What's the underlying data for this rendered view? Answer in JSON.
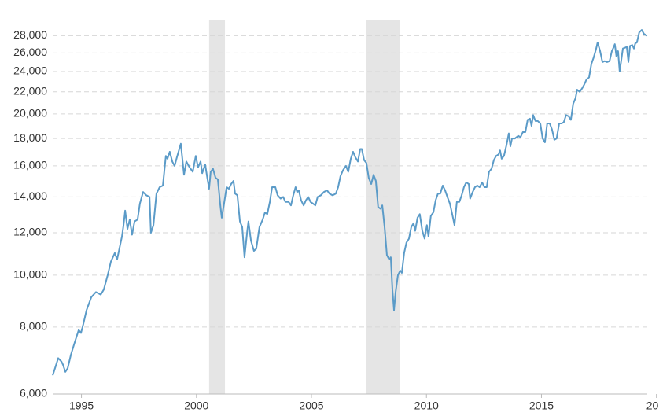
{
  "chart_data": {
    "type": "line",
    "color": "#5b9bc8",
    "shade_color": "#e5e5e5",
    "log_scale_y": true,
    "grid": true,
    "xlim": [
      1993.75,
      2019.6
    ],
    "ylim": [
      6000,
      30000
    ],
    "xticks": [
      1995,
      2000,
      2005,
      2010,
      2015,
      {
        "value": 2020,
        "label": "20"
      }
    ],
    "yticks": [
      {
        "value": 6000,
        "label": "6,000"
      },
      {
        "value": 8000,
        "label": "8,000"
      },
      {
        "value": 10000,
        "label": "10,000"
      },
      {
        "value": 12000,
        "label": "12,000"
      },
      {
        "value": 14000,
        "label": "14,000"
      },
      {
        "value": 16000,
        "label": "16,000"
      },
      {
        "value": 18000,
        "label": "18,000"
      },
      {
        "value": 20000,
        "label": "20,000"
      },
      {
        "value": 22000,
        "label": "22,000"
      },
      {
        "value": 24000,
        "label": "24,000"
      },
      {
        "value": 26000,
        "label": "26,000"
      },
      {
        "value": 28000,
        "label": "28,000"
      }
    ],
    "shaded_ranges": [
      [
        2000.55,
        2001.24
      ],
      [
        2007.39,
        2008.86
      ]
    ],
    "x": [
      1993.75,
      1993.85,
      1993.99,
      1994.13,
      1994.2,
      1994.3,
      1994.4,
      1994.54,
      1994.71,
      1994.88,
      1994.98,
      1995.08,
      1995.22,
      1995.43,
      1995.63,
      1995.84,
      1995.97,
      1996.14,
      1996.28,
      1996.45,
      1996.55,
      1996.76,
      1996.83,
      1996.9,
      1997.0,
      1997.1,
      1997.2,
      1997.31,
      1997.44,
      1997.54,
      1997.68,
      1997.82,
      1997.96,
      1998.02,
      1998.13,
      1998.26,
      1998.4,
      1998.54,
      1998.67,
      1998.74,
      1998.84,
      1998.95,
      1999.05,
      1999.15,
      1999.32,
      1999.46,
      1999.56,
      1999.7,
      1999.84,
      1999.97,
      2000.07,
      2000.18,
      2000.25,
      2000.38,
      2000.45,
      2000.55,
      2000.62,
      2000.72,
      2000.83,
      2000.93,
      2001.03,
      2001.1,
      2001.2,
      2001.31,
      2001.41,
      2001.51,
      2001.61,
      2001.68,
      2001.78,
      2001.89,
      2001.99,
      2002.09,
      2002.2,
      2002.26,
      2002.37,
      2002.5,
      2002.6,
      2002.74,
      2002.88,
      2002.98,
      2003.08,
      2003.19,
      2003.29,
      2003.43,
      2003.53,
      2003.66,
      2003.77,
      2003.87,
      2004.01,
      2004.11,
      2004.21,
      2004.31,
      2004.38,
      2004.45,
      2004.55,
      2004.66,
      2004.76,
      2004.86,
      2004.96,
      2005.07,
      2005.17,
      2005.27,
      2005.41,
      2005.54,
      2005.68,
      2005.78,
      2005.92,
      2006.06,
      2006.16,
      2006.26,
      2006.37,
      2006.5,
      2006.6,
      2006.71,
      2006.81,
      2006.91,
      2007.02,
      2007.12,
      2007.19,
      2007.29,
      2007.39,
      2007.49,
      2007.6,
      2007.7,
      2007.8,
      2007.9,
      2008.01,
      2008.08,
      2008.18,
      2008.28,
      2008.38,
      2008.45,
      2008.52,
      2008.59,
      2008.66,
      2008.76,
      2008.86,
      2008.93,
      2009.03,
      2009.13,
      2009.24,
      2009.34,
      2009.44,
      2009.51,
      2009.61,
      2009.71,
      2009.82,
      2009.92,
      2010.02,
      2010.09,
      2010.19,
      2010.3,
      2010.4,
      2010.5,
      2010.6,
      2010.71,
      2010.81,
      2010.91,
      2011.02,
      2011.12,
      2011.22,
      2011.32,
      2011.43,
      2011.53,
      2011.63,
      2011.73,
      2011.84,
      2011.9,
      2012.01,
      2012.11,
      2012.21,
      2012.31,
      2012.42,
      2012.52,
      2012.62,
      2012.72,
      2012.83,
      2012.93,
      2013.03,
      2013.13,
      2013.2,
      2013.27,
      2013.37,
      2013.48,
      2013.58,
      2013.65,
      2013.72,
      2013.85,
      2013.99,
      2014.09,
      2014.19,
      2014.3,
      2014.4,
      2014.5,
      2014.57,
      2014.64,
      2014.74,
      2014.84,
      2014.95,
      2015.05,
      2015.15,
      2015.25,
      2015.36,
      2015.46,
      2015.56,
      2015.66,
      2015.77,
      2015.87,
      2015.97,
      2016.07,
      2016.18,
      2016.28,
      2016.38,
      2016.48,
      2016.55,
      2016.66,
      2016.76,
      2016.86,
      2016.96,
      2017.07,
      2017.17,
      2017.27,
      2017.37,
      2017.44,
      2017.55,
      2017.65,
      2017.75,
      2017.85,
      2017.96,
      2018.06,
      2018.13,
      2018.19,
      2018.26,
      2018.33,
      2018.4,
      2018.47,
      2018.54,
      2018.64,
      2018.71,
      2018.78,
      2018.85,
      2018.95,
      2019.02,
      2019.08,
      2019.15,
      2019.25,
      2019.36,
      2019.46,
      2019.6
    ],
    "values": [
      6500,
      6700,
      7000,
      6900,
      6800,
      6600,
      6700,
      7100,
      7500,
      7900,
      7800,
      8100,
      8600,
      9100,
      9300,
      9200,
      9400,
      10000,
      10600,
      11000,
      10700,
      11800,
      12400,
      13200,
      12200,
      12700,
      11900,
      12600,
      12700,
      13600,
      14300,
      14100,
      14000,
      12000,
      12400,
      14200,
      14600,
      14700,
      16700,
      16500,
      17000,
      16300,
      16000,
      16600,
      17600,
      15400,
      16300,
      15900,
      15600,
      16700,
      15900,
      16300,
      15500,
      16100,
      15400,
      14500,
      15600,
      15800,
      15200,
      15100,
      13600,
      12800,
      13600,
      14600,
      14500,
      14800,
      15000,
      14200,
      14100,
      12600,
      12300,
      10800,
      12000,
      12600,
      11600,
      11100,
      11200,
      12300,
      12700,
      13100,
      13000,
      13700,
      14600,
      14600,
      14100,
      13900,
      14000,
      13700,
      13700,
      13500,
      14100,
      14600,
      14300,
      14400,
      13800,
      13500,
      13800,
      14000,
      13700,
      13600,
      13500,
      14000,
      14100,
      14300,
      14400,
      14200,
      14100,
      14200,
      14600,
      15300,
      15700,
      16000,
      15600,
      16500,
      17000,
      16600,
      16300,
      17200,
      17200,
      16400,
      16200,
      15200,
      14800,
      15400,
      15000,
      13400,
      13300,
      13500,
      12300,
      10900,
      10700,
      10800,
      9400,
      8600,
      9300,
      10000,
      10200,
      10100,
      11000,
      11500,
      11700,
      12300,
      12500,
      12100,
      12800,
      13000,
      12100,
      11700,
      12400,
      11800,
      12900,
      13100,
      13800,
      14200,
      14200,
      14700,
      14400,
      14000,
      13600,
      13000,
      12400,
      13700,
      13700,
      14100,
      14600,
      14900,
      14800,
      13900,
      14300,
      14600,
      14700,
      14600,
      14900,
      14600,
      14600,
      15600,
      15800,
      16400,
      16700,
      16800,
      17100,
      16500,
      16700,
      17500,
      18400,
      17400,
      18000,
      18000,
      18200,
      18100,
      18500,
      18500,
      19500,
      19600,
      19000,
      19900,
      19400,
      19400,
      19200,
      18000,
      17700,
      19200,
      19200,
      18700,
      17900,
      18000,
      19200,
      19200,
      19300,
      19900,
      19800,
      19500,
      20900,
      21400,
      22200,
      22000,
      22300,
      22700,
      23200,
      23400,
      24800,
      25500,
      26400,
      27200,
      26200,
      25000,
      25100,
      25000,
      25100,
      26200,
      26600,
      27000,
      25600,
      26200,
      24000,
      25200,
      26500,
      26600,
      26700,
      25000,
      26800,
      26900,
      26500,
      27100,
      27200,
      28400,
      28700,
      28200,
      28000
    ]
  }
}
